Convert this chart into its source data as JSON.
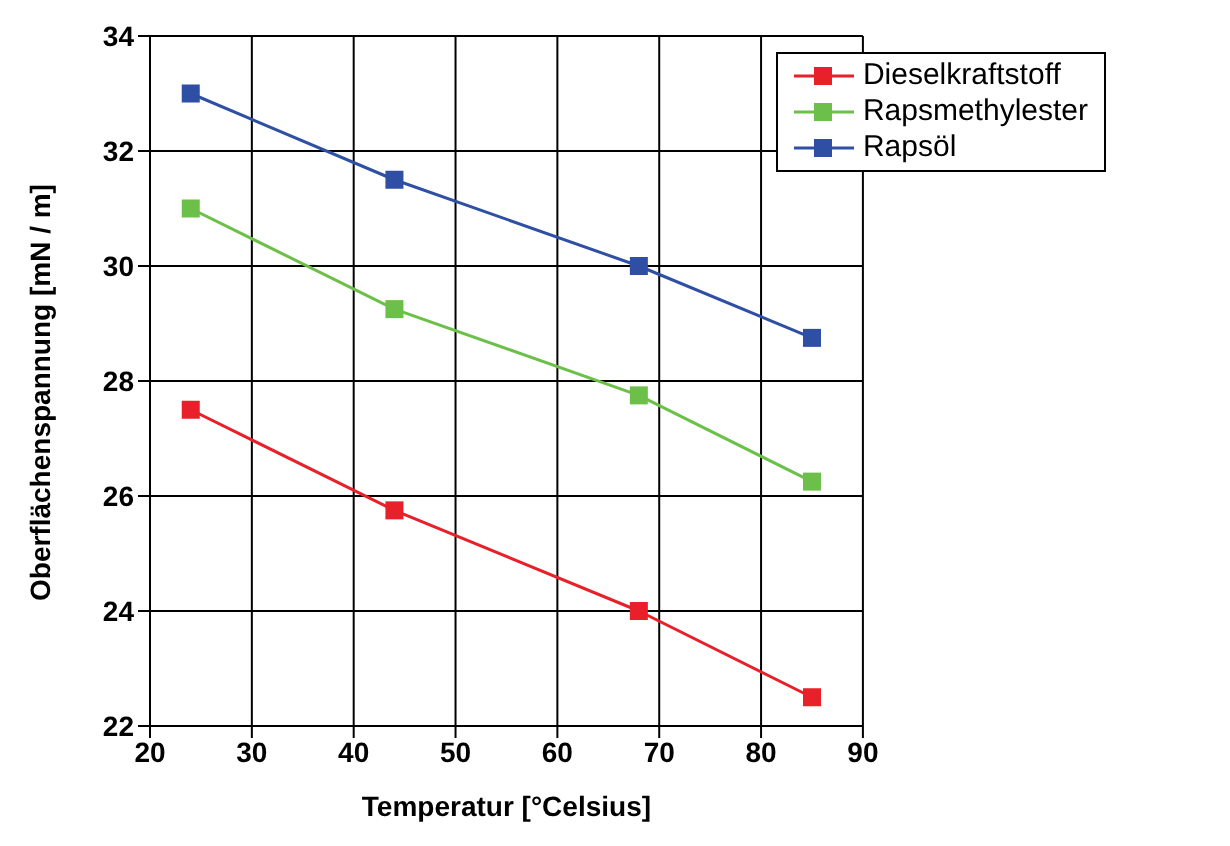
{
  "chart_data": {
    "type": "line",
    "xlabel": "Temperatur [°Celsius]",
    "ylabel": "Oberflächenspannung [mN / m]",
    "x": [
      24,
      44,
      68,
      85
    ],
    "series": [
      {
        "name": "Dieselkraftstoff",
        "color": "#e8202a",
        "values": [
          27.5,
          25.75,
          24,
          22.5
        ]
      },
      {
        "name": "Rapsmethylester",
        "color": "#6cc04a",
        "values": [
          31,
          29.25,
          27.75,
          26.25
        ]
      },
      {
        "name": "Rapsöl",
        "color": "#2e4fa3",
        "values": [
          33,
          31.5,
          30,
          28.75
        ]
      }
    ],
    "xlim": [
      20,
      90
    ],
    "xticks": [
      20,
      30,
      40,
      50,
      60,
      70,
      80,
      90
    ],
    "ylim": [
      22,
      34
    ],
    "yticks": [
      22,
      24,
      26,
      28,
      30,
      32,
      34
    ],
    "grid": true,
    "legend": "top right",
    "marker": "square",
    "line_style": "solid"
  }
}
